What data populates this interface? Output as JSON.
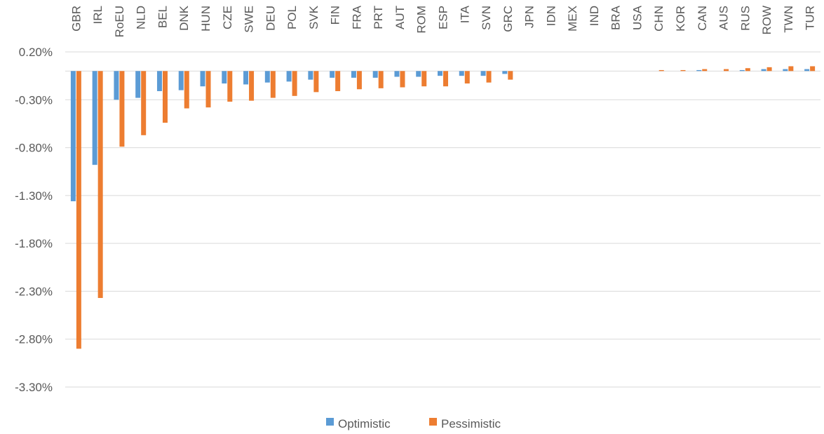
{
  "chart_data": {
    "type": "bar",
    "title": "",
    "xlabel": "",
    "ylabel": "",
    "ylim": [
      -3.3,
      0.2
    ],
    "yticks": [
      0.2,
      -0.3,
      -0.8,
      -1.3,
      -1.8,
      -2.3,
      -2.8,
      -3.3
    ],
    "ytick_labels": [
      "0.20%",
      "-0.30%",
      "-0.80%",
      "-1.30%",
      "-1.80%",
      "-2.30%",
      "-2.80%",
      "-3.30%"
    ],
    "grid": true,
    "legend_position": "bottom",
    "categories": [
      "GBR",
      "IRL",
      "RoEU",
      "NLD",
      "BEL",
      "DNK",
      "HUN",
      "CZE",
      "SWE",
      "DEU",
      "POL",
      "SVK",
      "FIN",
      "FRA",
      "PRT",
      "AUT",
      "ROM",
      "ESP",
      "ITA",
      "SVN",
      "GRC",
      "JPN",
      "IDN",
      "MEX",
      "IND",
      "BRA",
      "USA",
      "CHN",
      "KOR",
      "CAN",
      "AUS",
      "RUS",
      "ROW",
      "TWN",
      "TUR"
    ],
    "series": [
      {
        "name": "Optimistic",
        "color": "#5B9BD5",
        "values": [
          -1.36,
          -0.98,
          -0.3,
          -0.28,
          -0.21,
          -0.2,
          -0.16,
          -0.13,
          -0.14,
          -0.12,
          -0.11,
          -0.09,
          -0.07,
          -0.07,
          -0.07,
          -0.06,
          -0.06,
          -0.05,
          -0.05,
          -0.05,
          -0.03,
          0,
          0,
          0,
          0,
          0,
          0,
          0,
          0,
          0.01,
          0,
          0.01,
          0.02,
          0.02,
          0.02
        ]
      },
      {
        "name": "Pessimistic",
        "color": "#ED7D31",
        "values": [
          -2.9,
          -2.37,
          -0.79,
          -0.67,
          -0.54,
          -0.39,
          -0.38,
          -0.32,
          -0.31,
          -0.28,
          -0.26,
          -0.22,
          -0.21,
          -0.19,
          -0.18,
          -0.17,
          -0.16,
          -0.16,
          -0.13,
          -0.12,
          -0.09,
          0,
          0,
          0,
          0,
          0,
          0,
          0.01,
          0.01,
          0.02,
          0.02,
          0.03,
          0.04,
          0.05,
          0.05
        ]
      }
    ]
  }
}
